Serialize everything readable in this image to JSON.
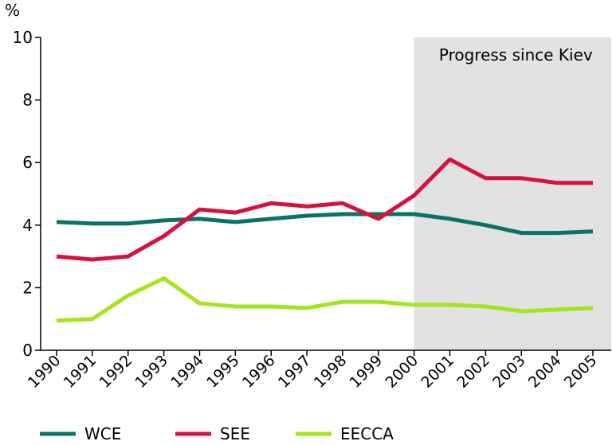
{
  "chart_data": {
    "type": "line",
    "ylabel": "%",
    "ylim": [
      0,
      10
    ],
    "yticks": [
      "0",
      "2",
      "4",
      "6",
      "8",
      "10"
    ],
    "categories": [
      "1990",
      "1991",
      "1992",
      "1993",
      "1994",
      "1995",
      "1996",
      "1997",
      "1998",
      "1999",
      "2000",
      "2001",
      "2002",
      "2003",
      "2004",
      "2005"
    ],
    "shaded_region": {
      "from": "2000",
      "to": "2005",
      "label": "Progress since Kiev",
      "color": "#e2e2e2"
    },
    "series": [
      {
        "name": "WCE",
        "color": "#0a7266",
        "values": [
          4.1,
          4.05,
          4.05,
          4.15,
          4.2,
          4.1,
          4.2,
          4.3,
          4.35,
          4.35,
          4.35,
          4.2,
          4.0,
          3.75,
          3.75,
          3.8
        ]
      },
      {
        "name": "SEE",
        "color": "#d6123c",
        "values": [
          3.0,
          2.9,
          3.0,
          3.65,
          4.5,
          4.4,
          4.7,
          4.6,
          4.7,
          4.2,
          4.95,
          6.1,
          5.5,
          5.5,
          5.35,
          5.35
        ]
      },
      {
        "name": "EECCA",
        "color": "#a3e51e",
        "values": [
          0.95,
          1.0,
          1.75,
          2.3,
          1.5,
          1.4,
          1.4,
          1.35,
          1.55,
          1.55,
          1.45,
          1.45,
          1.4,
          1.25,
          1.3,
          1.35
        ]
      }
    ],
    "legend_position": "bottom",
    "grid": false
  }
}
